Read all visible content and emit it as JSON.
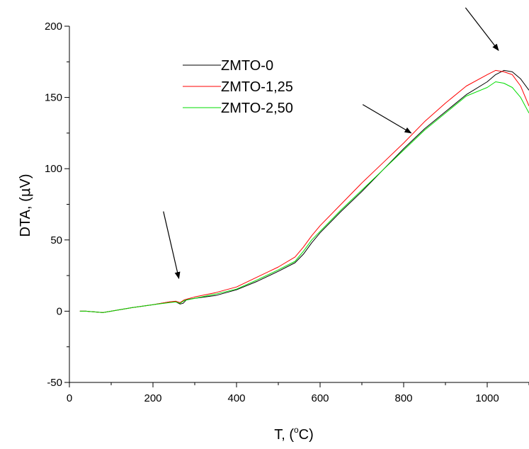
{
  "chart_data": {
    "type": "line",
    "title": "",
    "xlabel": "T, (",
    "xlabel_sup": "o",
    "xlabel_tail": "C)",
    "ylabel": "DTA, (",
    "ylabel_mu": "μ",
    "ylabel_tail": "V)",
    "xlim": [
      0,
      1100
    ],
    "ylim": [
      -50,
      200
    ],
    "xticks": [
      0,
      200,
      400,
      600,
      800,
      1000
    ],
    "yticks": [
      -50,
      0,
      50,
      100,
      150,
      200
    ],
    "xtick_labels": [
      "0",
      "200",
      "400",
      "600",
      "800",
      "1000"
    ],
    "ytick_labels": [
      "-50",
      "0",
      "50",
      "100",
      "150",
      "200"
    ],
    "grid": false,
    "legend_position": "upper-left-center",
    "series": [
      {
        "name": "ZMTO-0",
        "color": "#000000",
        "x": [
          25,
          40,
          60,
          80,
          100,
          150,
          200,
          240,
          255,
          265,
          272,
          280,
          300,
          350,
          400,
          450,
          500,
          540,
          560,
          580,
          600,
          650,
          700,
          750,
          800,
          850,
          900,
          950,
          1000,
          1020,
          1040,
          1060,
          1080,
          1100
        ],
        "y": [
          0,
          0,
          -0.5,
          -1,
          0,
          2.5,
          4.5,
          6.5,
          6.5,
          5,
          5.5,
          8,
          9,
          11,
          15,
          21,
          28,
          34,
          40,
          48,
          55,
          70,
          84,
          99,
          114,
          128,
          140,
          152,
          161,
          166,
          169,
          168,
          163,
          155
        ]
      },
      {
        "name": "ZMTO-1,25",
        "color": "#ff0000",
        "x": [
          25,
          40,
          60,
          80,
          100,
          150,
          200,
          240,
          255,
          265,
          275,
          300,
          350,
          400,
          450,
          500,
          540,
          560,
          580,
          600,
          650,
          700,
          750,
          800,
          850,
          900,
          950,
          1000,
          1020,
          1040,
          1060,
          1080,
          1100
        ],
        "y": [
          0,
          0,
          -0.5,
          -1,
          0,
          2.5,
          4.5,
          6.5,
          7,
          6,
          8,
          10,
          13,
          17,
          24,
          31,
          38,
          45,
          53,
          60,
          75,
          90,
          104,
          118,
          133,
          146,
          158,
          166,
          169,
          168,
          166,
          158,
          144
        ]
      },
      {
        "name": "ZMTO-2,50",
        "color": "#00dd00",
        "x": [
          25,
          40,
          60,
          80,
          100,
          150,
          200,
          240,
          255,
          265,
          275,
          300,
          350,
          400,
          450,
          500,
          540,
          560,
          580,
          600,
          650,
          700,
          750,
          800,
          850,
          900,
          950,
          1000,
          1020,
          1040,
          1060,
          1080,
          1100
        ],
        "y": [
          0,
          0,
          -0.5,
          -1,
          0,
          2.5,
          4.5,
          6,
          6.5,
          5.5,
          7.5,
          9,
          12,
          15.5,
          22,
          29,
          35,
          42,
          50,
          56,
          71,
          85,
          99,
          113,
          127,
          139,
          151,
          157,
          161,
          160,
          157,
          150,
          139
        ]
      }
    ],
    "annotations": [
      {
        "type": "arrow",
        "from": [
          225,
          70
        ],
        "to": [
          262,
          23
        ]
      },
      {
        "type": "arrow",
        "from": [
          702,
          145
        ],
        "to": [
          818,
          125
        ]
      },
      {
        "type": "arrow",
        "from": [
          948,
          213
        ],
        "to": [
          1027,
          183
        ]
      }
    ]
  }
}
